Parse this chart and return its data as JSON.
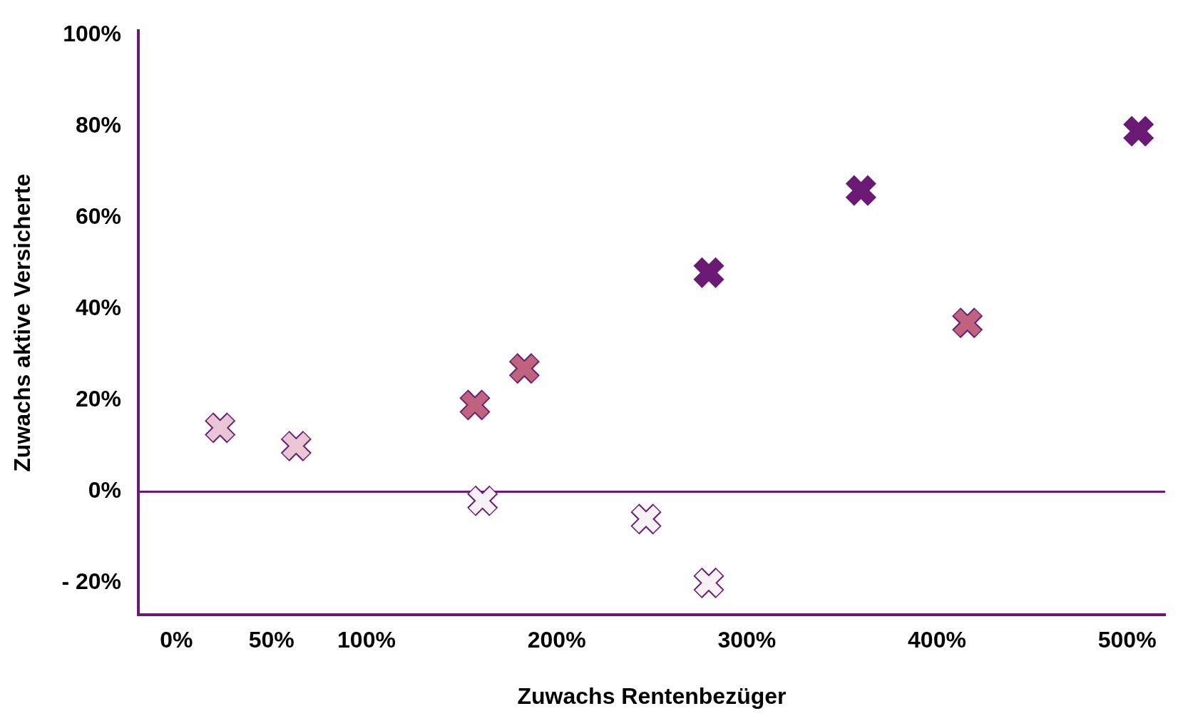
{
  "chart_data": {
    "type": "scatter",
    "xlabel": "Zuwachs Rentenbezüger",
    "ylabel": "Zuwachs aktive Versicherte",
    "series": [
      {
        "color": "#e9c6d4",
        "x": [
          23,
          63
        ],
        "values": [
          14,
          10
        ]
      },
      {
        "color": "#c0637e",
        "x": [
          157,
          183,
          416
        ],
        "values": [
          19,
          27,
          37
        ]
      },
      {
        "color": "#f5f1f5",
        "x": [
          161,
          247,
          280
        ],
        "values": [
          -2,
          -6,
          -20
        ]
      },
      {
        "color": "#6a1a74",
        "x": [
          280,
          360,
          506
        ],
        "values": [
          48,
          66,
          79
        ]
      }
    ],
    "xlim": [
      -20,
      520
    ],
    "xticks": [
      {
        "value": 0,
        "label": "0%"
      },
      {
        "value": 50,
        "label": "50%"
      },
      {
        "value": 100,
        "label": "100%"
      },
      {
        "value": 200,
        "label": "200%"
      },
      {
        "value": 300,
        "label": "300%"
      },
      {
        "value": 400,
        "label": "400%"
      },
      {
        "value": 500,
        "label": "500%"
      }
    ],
    "ylim": [
      -27,
      101
    ],
    "yticks": [
      {
        "value": -20,
        "label": "- 20%"
      },
      {
        "value": 0,
        "label": "0%"
      },
      {
        "value": 20,
        "label": "20%"
      },
      {
        "value": 40,
        "label": "40%"
      },
      {
        "value": 60,
        "label": "60%"
      },
      {
        "value": 80,
        "label": "80%"
      },
      {
        "value": 100,
        "label": "100%"
      }
    ],
    "ref_lines": [
      {
        "axis": "y",
        "value": 0,
        "color": "#6a1a74"
      }
    ],
    "marker": "cross",
    "grid": false,
    "legend": false
  }
}
